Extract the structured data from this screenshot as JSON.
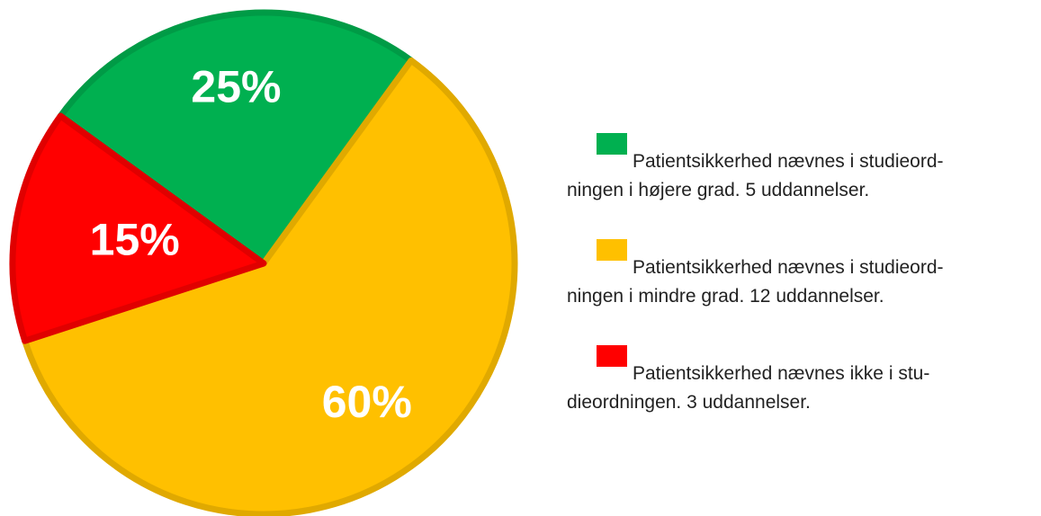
{
  "chart_data": {
    "type": "pie",
    "categories": [
      [
        "Patientsikkerhed nævnes i studieord-",
        "ningen i højere grad. 5 uddannelser."
      ],
      [
        "Patientsikkerhed nævnes i studieord-",
        "ningen i mindre grad. 12 uddannelser."
      ],
      [
        "Patientsikkerhed nævnes ikke i stu-",
        "dieordningen. 3 uddannelser."
      ]
    ],
    "values": [
      25,
      60,
      15
    ],
    "value_labels": [
      "25%",
      "60%",
      "15%"
    ],
    "colors": [
      "#00b050",
      "#ffc000",
      "#ff0000"
    ],
    "legend": "right"
  }
}
